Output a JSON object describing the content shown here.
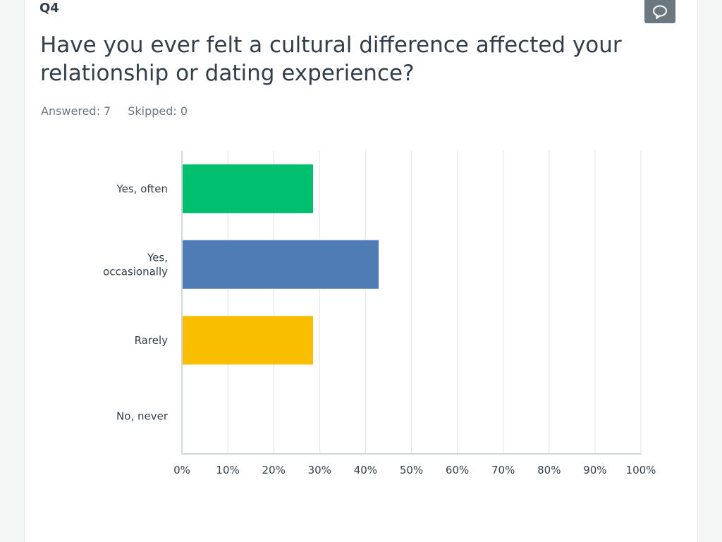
{
  "question": {
    "number": "Q4",
    "title": "Have you ever felt a cultural difference affected your relationship or dating experience?",
    "answered_text": "Answered: 7",
    "skipped_text": "Skipped: 0"
  },
  "icons": {
    "comment": "speech-bubble-icon"
  },
  "colors": {
    "green": "#00bf6f",
    "blue": "#507cb6",
    "yellow": "#f9be00",
    "grid": "#e1e3e4",
    "axis": "#c5cacc",
    "label": "#333e48"
  },
  "chart_data": {
    "type": "bar",
    "orientation": "horizontal",
    "categories": [
      "Yes, often",
      "Yes, occasionally",
      "Rarely",
      "No, never"
    ],
    "category_lines": [
      [
        "Yes, often"
      ],
      [
        "Yes,",
        "occasionally"
      ],
      [
        "Rarely"
      ],
      [
        "No, never"
      ]
    ],
    "values": [
      28.57,
      42.86,
      28.57,
      0
    ],
    "bar_colors": [
      "#00bf6f",
      "#507cb6",
      "#f9be00",
      "#6b787f"
    ],
    "xlim": [
      0,
      100
    ],
    "xticks": [
      "0%",
      "10%",
      "20%",
      "30%",
      "40%",
      "50%",
      "60%",
      "70%",
      "80%",
      "90%",
      "100%"
    ],
    "grid": true,
    "title": "",
    "xlabel": "",
    "ylabel": ""
  }
}
